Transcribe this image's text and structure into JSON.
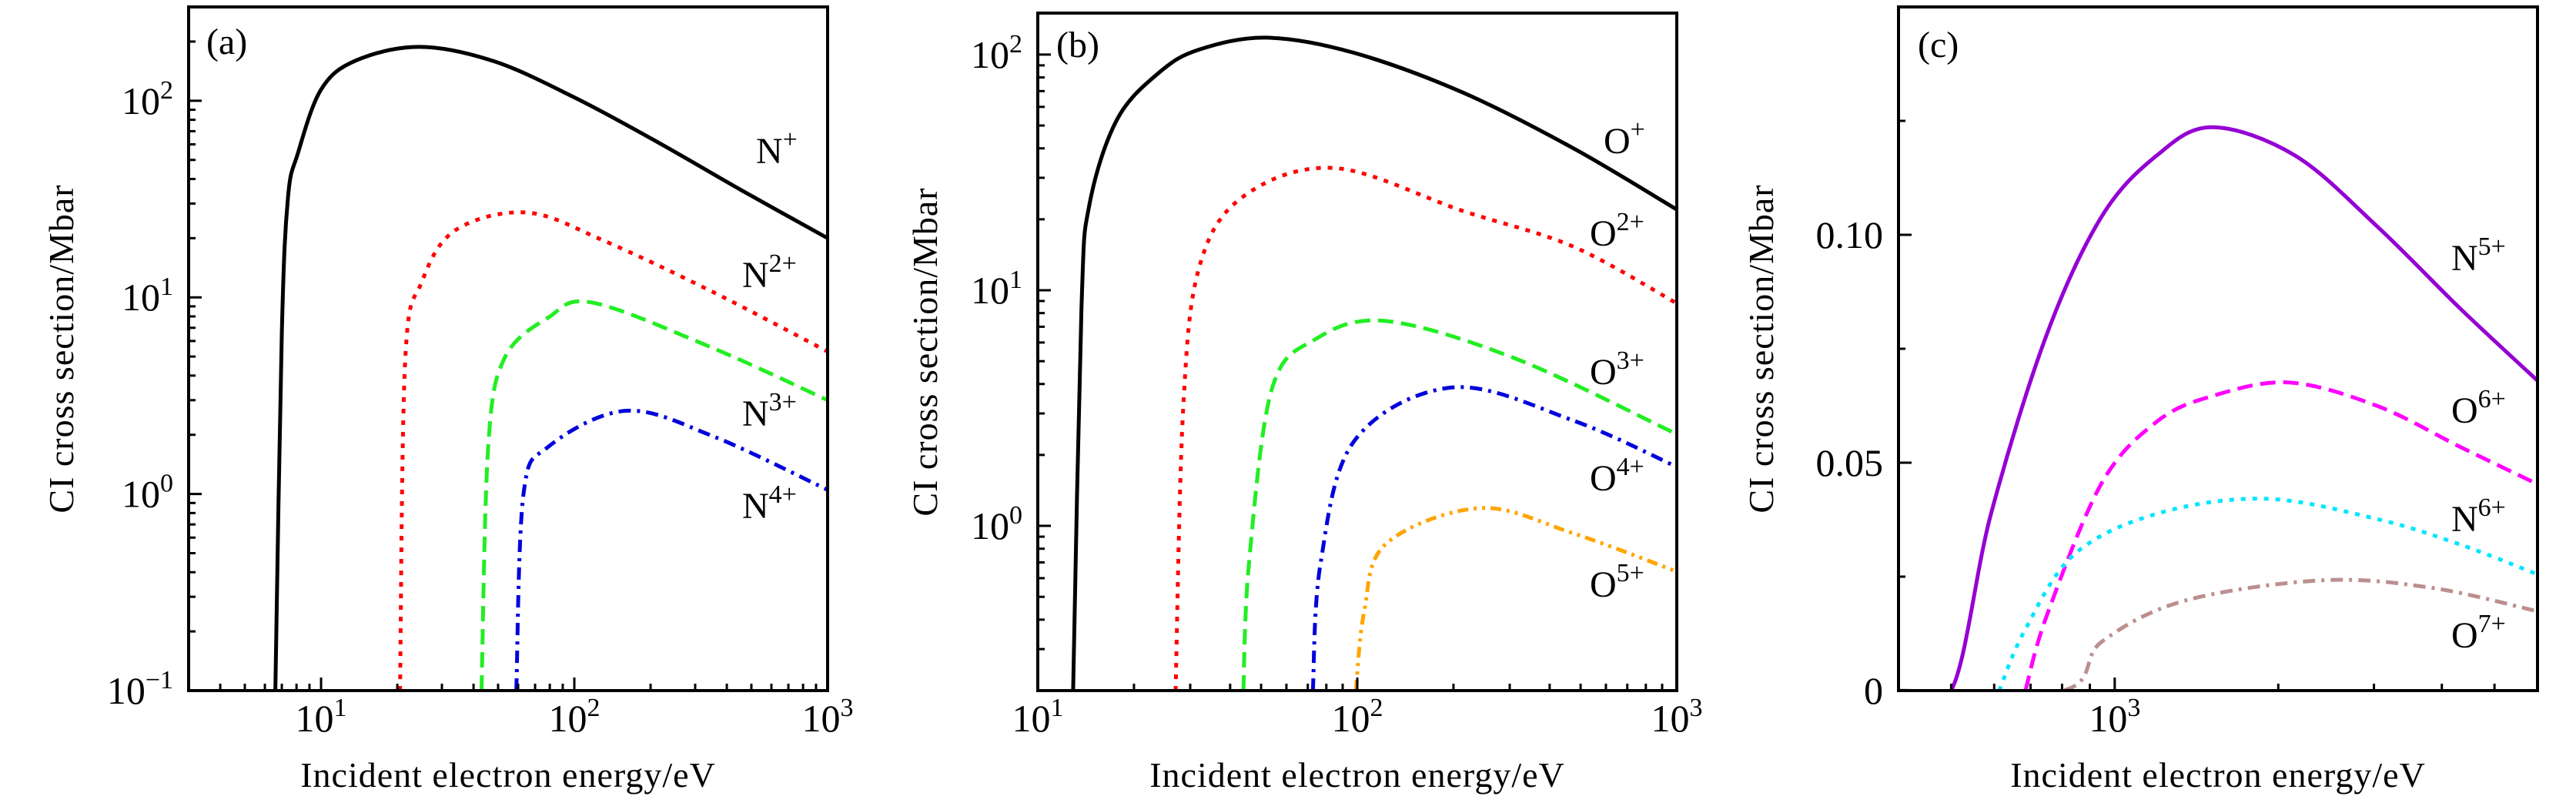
{
  "chart_data": [
    {
      "type": "line",
      "panel_label": "(a)",
      "xlabel": "Incident electron energy/eV",
      "ylabel": "CI cross section/Mbar",
      "xscale": "log",
      "yscale": "log",
      "xlim": [
        3,
        1000
      ],
      "ylim": [
        0.1,
        300
      ],
      "grid": false,
      "xticks": [
        {
          "value": 10,
          "base": "10",
          "sup": "1"
        },
        {
          "value": 100,
          "base": "10",
          "sup": "2"
        },
        {
          "value": 1000,
          "base": "10",
          "sup": "3"
        }
      ],
      "yticks": [
        {
          "value": 0.1,
          "base": "10",
          "sup": "−1"
        },
        {
          "value": 1,
          "base": "10",
          "sup": "0"
        },
        {
          "value": 10,
          "base": "10",
          "sup": "1"
        },
        {
          "value": 100,
          "base": "10",
          "sup": "2"
        }
      ],
      "series": [
        {
          "base": "N",
          "sup": "+",
          "color": "#000000",
          "style": "solid",
          "x": [
            6.6,
            7.0,
            7.4,
            8.1,
            10,
            13.7,
            24.4,
            48,
            100,
            216,
            458,
            1000
          ],
          "y": [
            0.1,
            6.6,
            32,
            54,
            114,
            160,
            188,
            159,
            104,
            61,
            35,
            20
          ]
        },
        {
          "base": "N",
          "sup": "2+",
          "color": "#ff0000",
          "style": "dotted",
          "x": [
            20.5,
            21.5,
            25,
            34,
            65,
            131,
            355,
            1000
          ],
          "y": [
            0.1,
            4.85,
            12,
            22,
            27,
            19.4,
            10.6,
            5.3
          ]
        },
        {
          "base": "N",
          "sup": "3+",
          "color": "#22ee22",
          "style": "dashed",
          "x": [
            43,
            45.7,
            53,
            79,
            118,
            355,
            1000
          ],
          "y": [
            0.1,
            1.74,
            4.9,
            7.9,
            9.4,
            5.5,
            3.0
          ]
        },
        {
          "base": "N",
          "sup": "4+",
          "color": "#0000dd",
          "style": "dashdot",
          "x": [
            59,
            63,
            79,
            160,
            355,
            1000
          ],
          "y": [
            0.1,
            1.0,
            1.74,
            2.65,
            1.96,
            1.05
          ]
        }
      ]
    },
    {
      "type": "line",
      "panel_label": "(b)",
      "xlabel": "Incident electron energy/eV",
      "ylabel": "CI cross section/Mbar",
      "xscale": "log",
      "yscale": "log",
      "xlim": [
        10,
        1000
      ],
      "ylim": [
        0.2,
        150
      ],
      "grid": false,
      "xticks": [
        {
          "value": 10,
          "base": "10",
          "sup": "1"
        },
        {
          "value": 100,
          "base": "10",
          "sup": "2"
        },
        {
          "value": 1000,
          "base": "10",
          "sup": "3"
        }
      ],
      "yticks": [
        {
          "value": 1,
          "base": "10",
          "sup": "0"
        },
        {
          "value": 10,
          "base": "10",
          "sup": "1"
        },
        {
          "value": 100,
          "base": "10",
          "sup": "2"
        }
      ],
      "series": [
        {
          "base": "O",
          "sup": "+",
          "color": "#000000",
          "style": "solid",
          "x": [
            12.9,
            13.7,
            14.5,
            17.7,
            24,
            32,
            52,
            97,
            214,
            475,
            1000
          ],
          "y": [
            0.2,
            8.4,
            23,
            53,
            84,
            105,
            118,
            102,
            69,
            40,
            22
          ]
        },
        {
          "base": "O",
          "sup": "2+",
          "color": "#ff0000",
          "style": "dotted",
          "x": [
            27,
            28.5,
            32,
            44,
            85,
            214,
            475,
            1000
          ],
          "y": [
            0.2,
            3.1,
            12.5,
            25,
            33,
            21.7,
            15.3,
            8.8
          ]
        },
        {
          "base": "O",
          "sup": "3+",
          "color": "#22ee22",
          "style": "dashed",
          "x": [
            44,
            45.8,
            54,
            74,
            123,
            316,
            1000
          ],
          "y": [
            0.2,
            0.69,
            3.8,
            6.2,
            7.4,
            5.1,
            2.45
          ]
        },
        {
          "base": "O",
          "sup": "4+",
          "color": "#0000dd",
          "style": "dashdot",
          "x": [
            72.6,
            76.7,
            98,
            199,
            474,
            1000
          ],
          "y": [
            0.2,
            0.69,
            2.3,
            3.87,
            2.8,
            1.78
          ]
        },
        {
          "base": "O",
          "sup": "5+",
          "color": "#ffa500",
          "style": "dashdotdot",
          "x": [
            99,
            105,
            123,
            242,
            474,
            1000
          ],
          "y": [
            0.2,
            0.43,
            0.84,
            1.19,
            0.93,
            0.64
          ]
        }
      ]
    },
    {
      "type": "line",
      "panel_label": "(c)",
      "xlabel": "Incident electron energy/eV",
      "ylabel": "CI cross section/Mbar",
      "xscale": "log",
      "yscale": "linear",
      "xlim": [
        400,
        6000
      ],
      "ylim": [
        0,
        0.15
      ],
      "grid": false,
      "xticks": [
        {
          "value": 1000,
          "base": "10",
          "sup": "3"
        }
      ],
      "yticks": [
        {
          "value": 0,
          "base": "0",
          "sup": ""
        },
        {
          "value": 0.05,
          "base": "0.05",
          "sup": ""
        },
        {
          "value": 0.1,
          "base": "0.10",
          "sup": ""
        }
      ],
      "series": [
        {
          "base": "N",
          "sup": "5+",
          "color": "#9400d3",
          "style": "solid",
          "x": [
            400,
            500,
            592,
            749,
            946,
            1195,
            1510,
            2147,
            3050,
            4335,
            6000
          ],
          "y": [
            0,
            0,
            0.0388,
            0.078,
            0.104,
            0.1174,
            0.1236,
            0.1174,
            0.1017,
            0.0837,
            0.068
          ]
        },
        {
          "base": "O",
          "sup": "6+",
          "color": "#ff00ff",
          "style": "dashed",
          "x": [
            685,
            749,
            946,
            1195,
            1510,
            2094,
            3050,
            4335,
            6000
          ],
          "y": [
            0,
            0.0163,
            0.0455,
            0.059,
            0.0646,
            0.0676,
            0.0624,
            0.0534,
            0.0453
          ]
        },
        {
          "base": "N",
          "sup": "6+",
          "color": "#00e5ff",
          "style": "dotted",
          "x": [
            613,
            681,
            841,
            1195,
            1888,
            3050,
            4335,
            6000
          ],
          "y": [
            0,
            0.0129,
            0.0298,
            0.0388,
            0.0421,
            0.0376,
            0.032,
            0.0255
          ]
        },
        {
          "base": "O",
          "sup": "7+",
          "color": "#bc8f8f",
          "style": "dashdot",
          "x": [
            400,
            802,
            946,
            1343,
            2410,
            3855,
            6000
          ],
          "y": [
            0,
            0,
            0.0107,
            0.0197,
            0.0242,
            0.0225,
            0.0174
          ]
        }
      ]
    }
  ]
}
